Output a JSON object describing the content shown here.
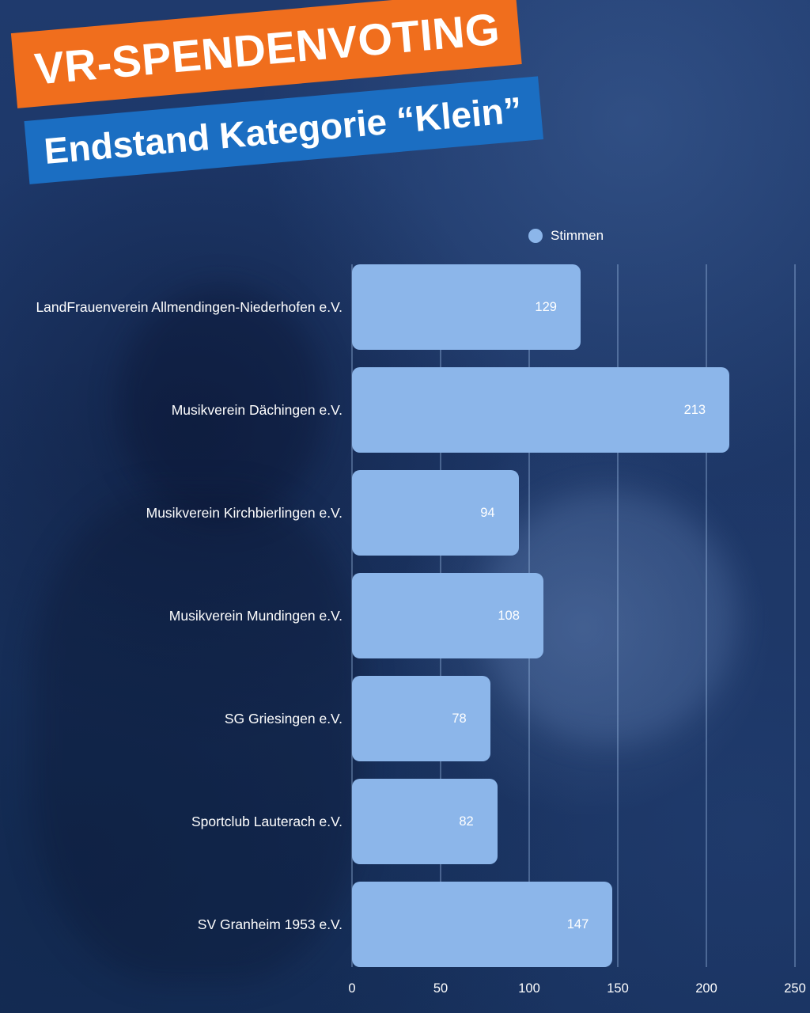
{
  "banners": {
    "title": "VR-SPENDENVOTING",
    "subtitle": "Endstand Kategorie “Klein”"
  },
  "legend": {
    "label": "Stimmen",
    "dot_color": "#8cb6ea"
  },
  "colors": {
    "background": "#1d3766",
    "banner_orange": "#f06e1d",
    "banner_blue": "#1b6ec2",
    "bar": "#8cb6ea",
    "text": "#ffffff"
  },
  "chart_data": {
    "type": "bar",
    "orientation": "horizontal",
    "title": "VR-SPENDENVOTING – Endstand Kategorie “Klein”",
    "series_name": "Stimmen",
    "categories": [
      "LandFrauenverein Allmendingen-Niederhofen e.V.",
      "Musikverein Dächingen e.V.",
      "Musikverein Kirchbierlingen e.V.",
      "Musikverein Mundingen e.V.",
      "SG Griesingen e.V.",
      "Sportclub Lauterach e.V.",
      "SV Granheim 1953 e.V."
    ],
    "values": [
      129,
      213,
      94,
      108,
      78,
      82,
      147
    ],
    "xlim": [
      0,
      250
    ],
    "xticks": [
      0,
      50,
      100,
      150,
      200,
      250
    ],
    "bar_color": "#8cb6ea",
    "grid": true,
    "legend_position": "top"
  }
}
